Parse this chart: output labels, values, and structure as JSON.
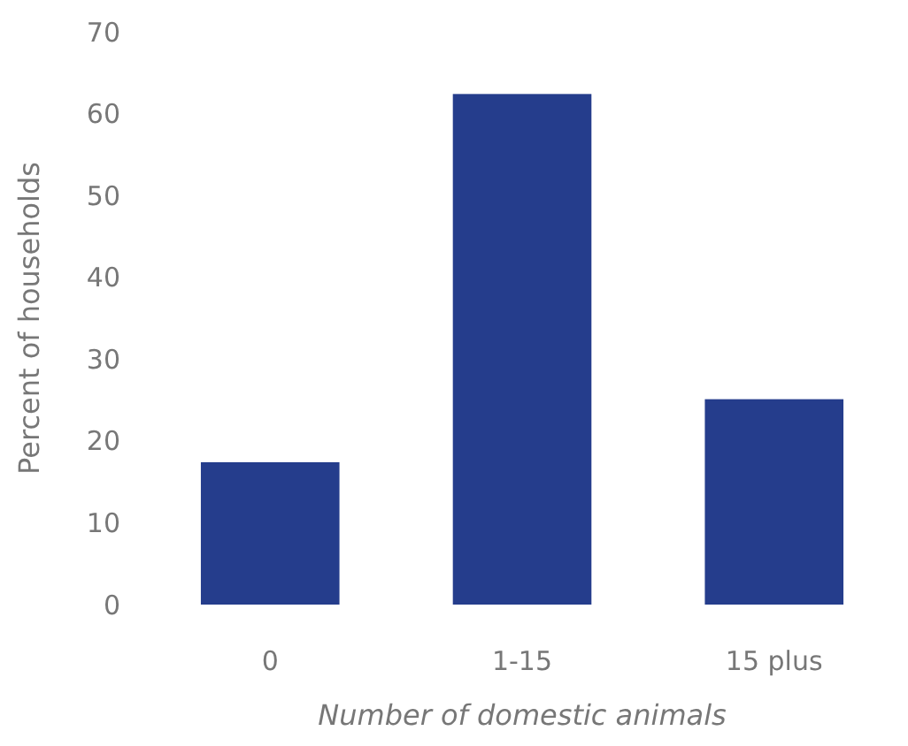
{
  "chart_data": {
    "type": "bar",
    "xlabel": "Number of domestic animals",
    "ylabel": "Percent of households",
    "categories": [
      "0",
      "1-15",
      "15 plus"
    ],
    "values": [
      17.4,
      62.4,
      25.1
    ],
    "color": "#253d8c",
    "ylim": [
      0,
      70
    ],
    "yticks": [
      0,
      10,
      20,
      30,
      40,
      50,
      60,
      70
    ],
    "grid": false
  }
}
